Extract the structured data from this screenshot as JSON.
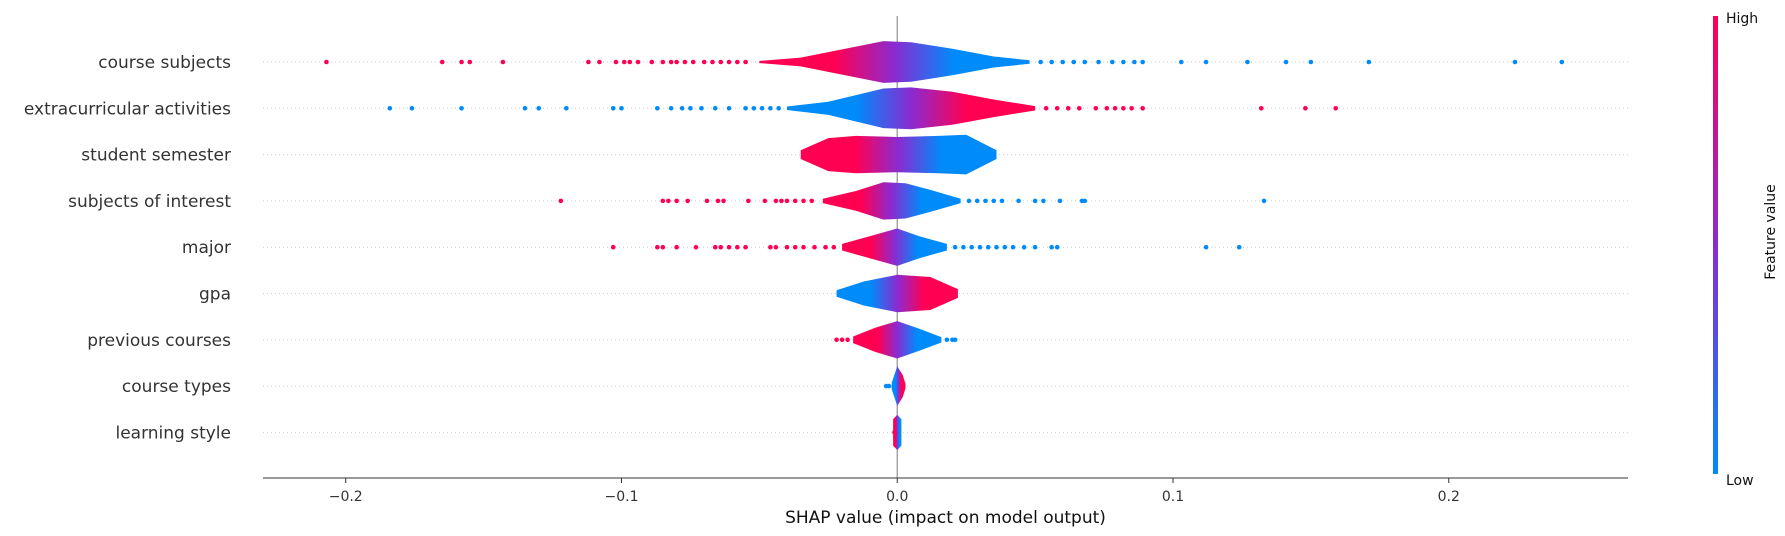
{
  "chart_data": {
    "type": "violin",
    "title": "",
    "xlabel": "SHAP value (impact on model output)",
    "xlim": [
      -0.23,
      0.265
    ],
    "xticks": [
      -0.2,
      -0.1,
      0.0,
      0.1,
      0.2
    ],
    "xtick_labels": [
      "−0.2",
      "−0.1",
      "0.0",
      "0.1",
      "0.2"
    ],
    "colors": {
      "low": "#008bfb",
      "high": "#ff0052",
      "mid": "#8a2bd1",
      "zero_line": "#999999"
    },
    "colorbar": {
      "title": "Feature value",
      "high_label": "High",
      "low_label": "Low"
    },
    "features": [
      {
        "name": "course subjects",
        "high_side": "negative",
        "body": [
          -0.05,
          0.048
        ],
        "density": [
          [
            -0.05,
            0.05
          ],
          [
            -0.035,
            0.2
          ],
          [
            -0.015,
            0.7
          ],
          [
            -0.005,
            0.95
          ],
          [
            0.005,
            0.9
          ],
          [
            0.02,
            0.6
          ],
          [
            0.035,
            0.25
          ],
          [
            0.048,
            0.08
          ]
        ],
        "high_points": [
          -0.207,
          -0.165,
          -0.158,
          -0.155,
          -0.143,
          -0.112,
          -0.108,
          -0.102,
          -0.099,
          -0.097,
          -0.094,
          -0.089,
          -0.085,
          -0.082,
          -0.08,
          -0.077,
          -0.074,
          -0.07,
          -0.067,
          -0.064,
          -0.061,
          -0.058,
          -0.055
        ],
        "low_points": [
          0.052,
          0.056,
          0.06,
          0.064,
          0.068,
          0.073,
          0.078,
          0.082,
          0.086,
          0.089,
          0.103,
          0.112,
          0.127,
          0.141,
          0.15,
          0.171,
          0.224,
          0.241
        ]
      },
      {
        "name": "extracurricular activities",
        "high_side": "positive",
        "body": [
          -0.04,
          0.05
        ],
        "density": [
          [
            -0.04,
            0.08
          ],
          [
            -0.025,
            0.3
          ],
          [
            -0.005,
            0.9
          ],
          [
            0.005,
            0.95
          ],
          [
            0.02,
            0.75
          ],
          [
            0.035,
            0.4
          ],
          [
            0.05,
            0.1
          ]
        ],
        "high_points": [
          0.054,
          0.058,
          0.062,
          0.066,
          0.072,
          0.076,
          0.079,
          0.082,
          0.085,
          0.089,
          0.132,
          0.148,
          0.159
        ],
        "low_points": [
          -0.184,
          -0.176,
          -0.158,
          -0.135,
          -0.13,
          -0.12,
          -0.103,
          -0.1,
          -0.087,
          -0.082,
          -0.078,
          -0.075,
          -0.071,
          -0.066,
          -0.061,
          -0.055,
          -0.052,
          -0.049,
          -0.046,
          -0.043
        ]
      },
      {
        "name": "student semester",
        "high_side": "negative",
        "body": [
          -0.035,
          0.036
        ],
        "density": [
          [
            -0.035,
            0.2
          ],
          [
            -0.025,
            0.75
          ],
          [
            -0.015,
            0.85
          ],
          [
            0.0,
            0.8
          ],
          [
            0.015,
            0.85
          ],
          [
            0.025,
            0.9
          ],
          [
            0.036,
            0.2
          ]
        ],
        "high_points": [],
        "low_points": []
      },
      {
        "name": "subjects of interest",
        "high_side": "negative",
        "body": [
          -0.027,
          0.023
        ],
        "density": [
          [
            -0.027,
            0.1
          ],
          [
            -0.015,
            0.45
          ],
          [
            -0.005,
            0.85
          ],
          [
            0.003,
            0.8
          ],
          [
            0.012,
            0.5
          ],
          [
            0.023,
            0.1
          ]
        ],
        "high_points": [
          -0.122,
          -0.085,
          -0.083,
          -0.08,
          -0.076,
          -0.069,
          -0.065,
          -0.063,
          -0.054,
          -0.048,
          -0.044,
          -0.042,
          -0.04,
          -0.037,
          -0.034,
          -0.031
        ],
        "low_points": [
          0.026,
          0.029,
          0.032,
          0.035,
          0.038,
          0.044,
          0.05,
          0.053,
          0.059,
          0.067,
          0.068,
          0.133
        ]
      },
      {
        "name": "major",
        "high_side": "negative",
        "body": [
          -0.02,
          0.018
        ],
        "density": [
          [
            -0.02,
            0.15
          ],
          [
            -0.01,
            0.5
          ],
          [
            0.0,
            0.85
          ],
          [
            0.008,
            0.5
          ],
          [
            0.018,
            0.15
          ]
        ],
        "high_points": [
          -0.103,
          -0.087,
          -0.085,
          -0.08,
          -0.073,
          -0.066,
          -0.064,
          -0.061,
          -0.058,
          -0.055,
          -0.046,
          -0.044,
          -0.04,
          -0.037,
          -0.034,
          -0.03,
          -0.026,
          -0.023
        ],
        "low_points": [
          0.021,
          0.024,
          0.027,
          0.03,
          0.033,
          0.036,
          0.039,
          0.042,
          0.046,
          0.05,
          0.056,
          0.058,
          0.112,
          0.124
        ]
      },
      {
        "name": "gpa",
        "high_side": "positive",
        "body": [
          -0.022,
          0.022
        ],
        "density": [
          [
            -0.022,
            0.15
          ],
          [
            -0.012,
            0.55
          ],
          [
            0.0,
            0.85
          ],
          [
            0.012,
            0.75
          ],
          [
            0.022,
            0.2
          ]
        ],
        "high_points": [],
        "low_points": []
      },
      {
        "name": "previous courses",
        "high_side": "negative",
        "body": [
          -0.016,
          0.016
        ],
        "density": [
          [
            -0.016,
            0.15
          ],
          [
            -0.008,
            0.55
          ],
          [
            0.0,
            0.85
          ],
          [
            0.008,
            0.5
          ],
          [
            0.016,
            0.12
          ]
        ],
        "high_points": [
          -0.022,
          -0.02,
          -0.018
        ],
        "low_points": [
          0.018,
          0.02,
          0.021
        ]
      },
      {
        "name": "course types",
        "high_side": "positive",
        "body": [
          -0.002,
          0.003
        ],
        "density": [
          [
            -0.002,
            0.15
          ],
          [
            0.0,
            0.9
          ],
          [
            0.002,
            0.5
          ],
          [
            0.003,
            0.1
          ]
        ],
        "high_points": [],
        "low_points": [
          -0.004,
          -0.003
        ]
      },
      {
        "name": "learning style",
        "high_side": "negative",
        "body": [
          -0.0015,
          0.0015
        ],
        "density": [
          [
            -0.0015,
            0.6
          ],
          [
            0.0,
            0.8
          ],
          [
            0.0015,
            0.6
          ]
        ],
        "high_points": [
          -0.001
        ],
        "low_points": []
      }
    ]
  }
}
